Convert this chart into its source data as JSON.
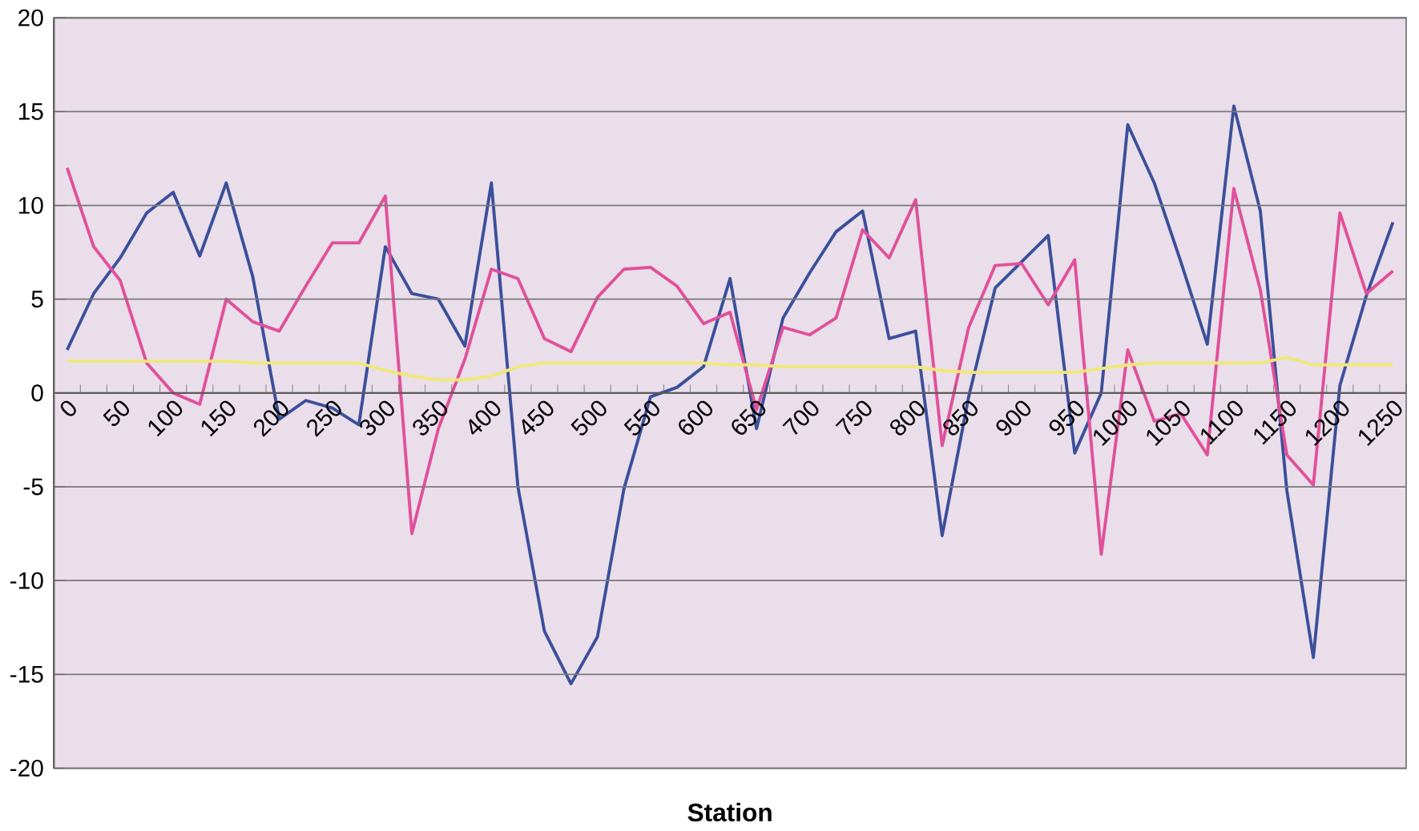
{
  "chart_data": {
    "type": "line",
    "xlabel": "Station",
    "categories": [
      "0",
      null,
      "50",
      null,
      "100",
      null,
      "150",
      null,
      "200",
      null,
      "250",
      null,
      "300",
      null,
      "350",
      null,
      "400",
      null,
      "450",
      null,
      "500",
      null,
      "550",
      null,
      "600",
      null,
      "650",
      null,
      "700",
      null,
      "750",
      null,
      "800",
      null,
      "850",
      null,
      "900",
      null,
      "950",
      null,
      "1000",
      null,
      "1050",
      null,
      "1100",
      null,
      "1150",
      null,
      "1200",
      null,
      "1250"
    ],
    "series": [
      {
        "color": "#3b4f9a",
        "values": [
          2.3,
          5.3,
          7.2,
          9.6,
          10.7,
          7.3,
          11.2,
          6.2,
          -1.4,
          -0.4,
          -0.8,
          -1.7,
          7.8,
          5.3,
          5.0,
          2.5,
          11.2,
          -5.0,
          -12.7,
          -15.5,
          -13.0,
          -5.1,
          -0.2,
          0.3,
          1.4,
          6.1,
          -1.9,
          4.0,
          6.4,
          8.6,
          9.7,
          2.9,
          3.3,
          -7.6,
          -0.2,
          5.6,
          7.0,
          8.4,
          -3.2,
          0.0,
          14.3,
          11.2,
          7.0,
          2.6,
          15.3,
          9.7,
          -5.2,
          -14.1,
          0.4,
          5.2,
          9.1
        ]
      },
      {
        "color": "#e0509a",
        "values": [
          12.0,
          7.8,
          6.0,
          1.6,
          0.0,
          -0.6,
          5.0,
          3.8,
          3.3,
          5.7,
          8.0,
          8.0,
          10.5,
          -7.5,
          -1.9,
          1.8,
          6.6,
          6.1,
          2.9,
          2.2,
          5.1,
          6.6,
          6.7,
          5.7,
          3.7,
          4.3,
          -0.9,
          3.5,
          3.1,
          4.0,
          8.7,
          7.2,
          10.3,
          -2.8,
          3.5,
          6.8,
          6.9,
          4.7,
          7.1,
          -8.6,
          2.3,
          -1.5,
          -1.1,
          -3.3,
          10.9,
          5.5,
          -3.3,
          -4.9,
          9.6,
          5.3,
          6.5
        ]
      },
      {
        "color": "#f0e878",
        "values": [
          1.7,
          1.7,
          1.7,
          1.7,
          1.7,
          1.7,
          1.7,
          1.6,
          1.6,
          1.6,
          1.6,
          1.6,
          1.2,
          0.9,
          0.7,
          0.7,
          0.9,
          1.4,
          1.6,
          1.6,
          1.6,
          1.6,
          1.6,
          1.6,
          1.6,
          1.5,
          1.5,
          1.4,
          1.4,
          1.4,
          1.4,
          1.4,
          1.4,
          1.2,
          1.1,
          1.1,
          1.1,
          1.1,
          1.1,
          1.3,
          1.5,
          1.6,
          1.6,
          1.6,
          1.6,
          1.6,
          1.9,
          1.5,
          1.5,
          1.5,
          1.5
        ]
      }
    ],
    "ylim": [
      -20,
      20
    ],
    "yticks": [
      -20,
      -15,
      -10,
      -5,
      0,
      5,
      10,
      15,
      20
    ],
    "grid": "y",
    "marker": "none",
    "line_style": "solid"
  }
}
